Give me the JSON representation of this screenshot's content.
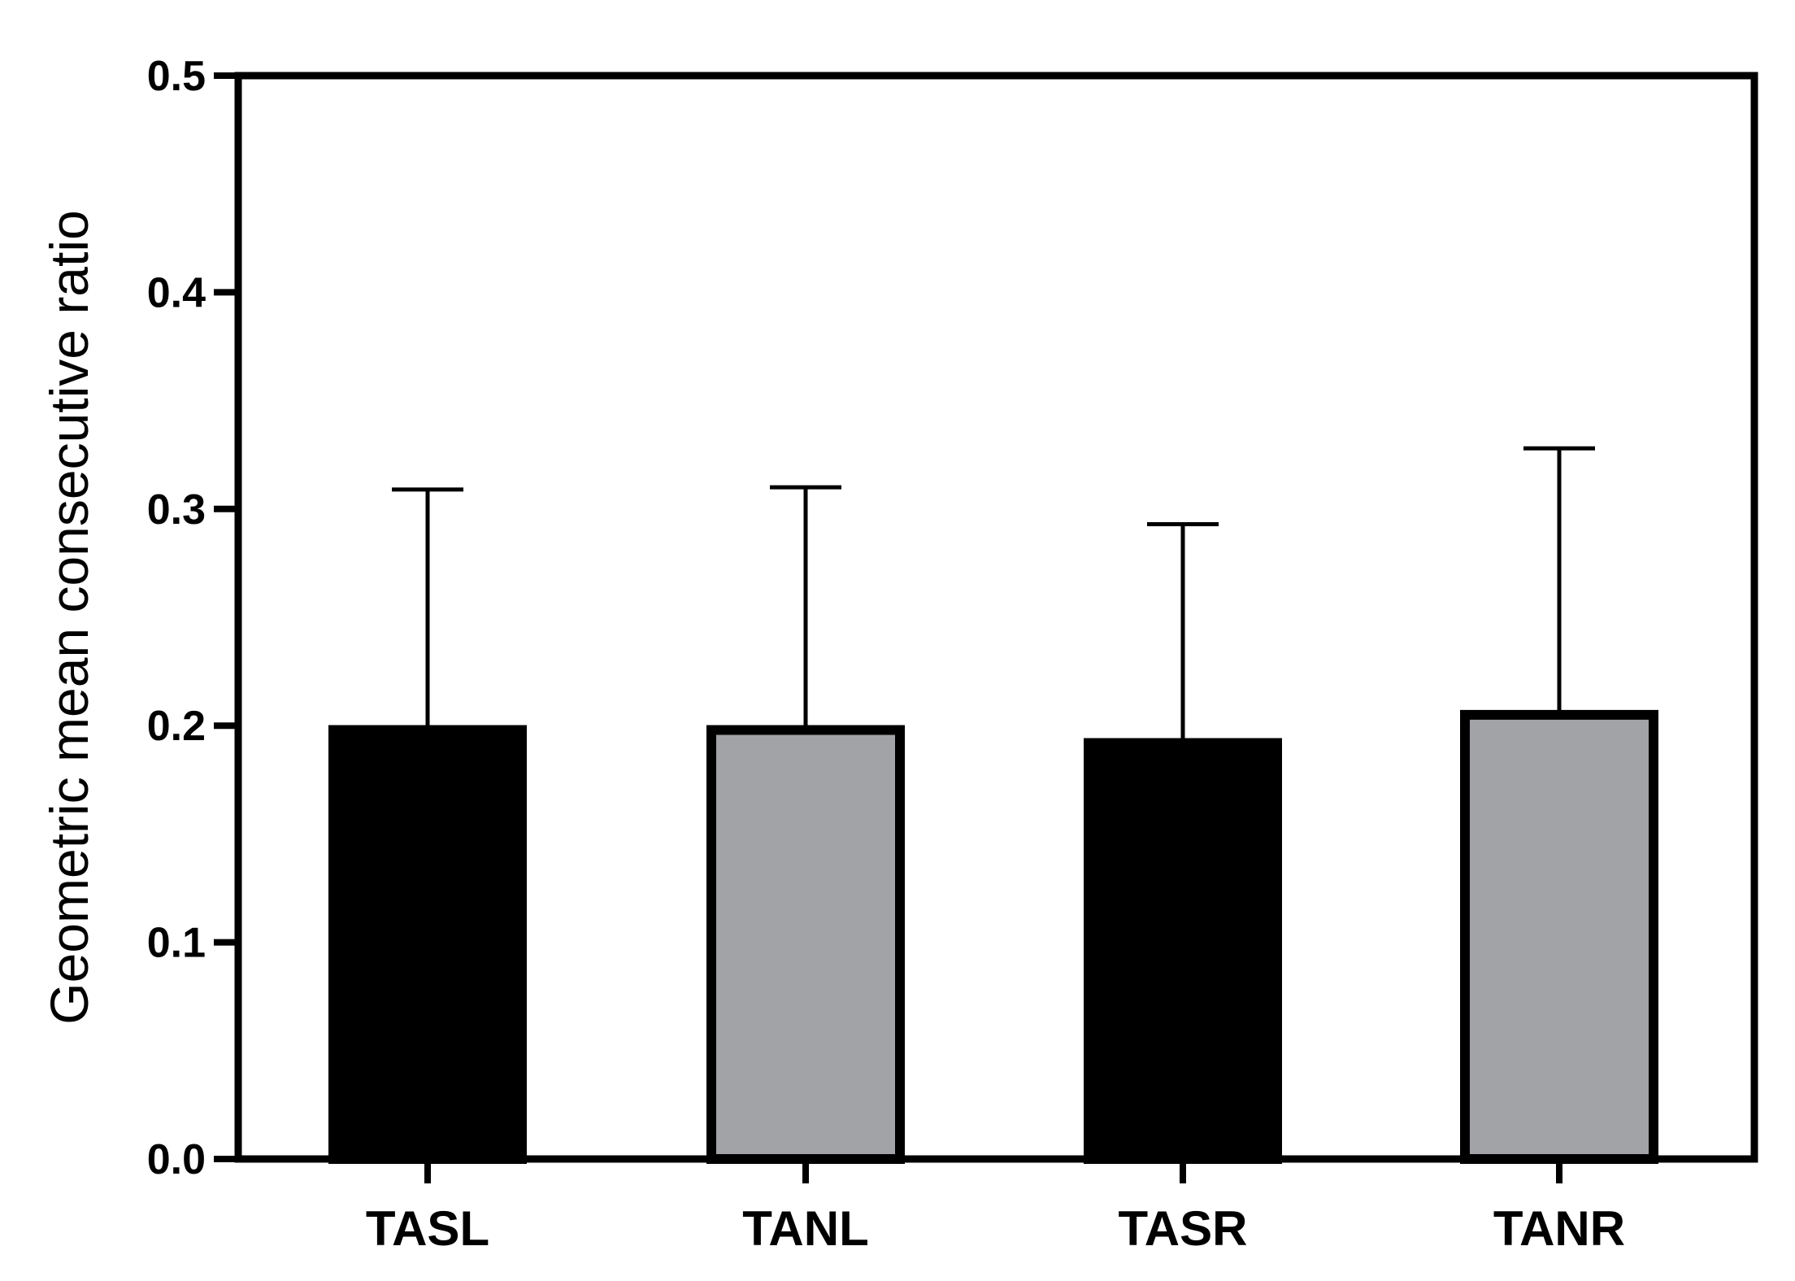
{
  "chart_data": {
    "type": "bar",
    "title": "",
    "xlabel": "",
    "ylabel": "Geometric mean consecutive ratio",
    "ylim": [
      0,
      0.5
    ],
    "yticks": [
      "0.0",
      "0.1",
      "0.2",
      "0.3",
      "0.4",
      "0.5"
    ],
    "categories": [
      "TASL",
      "TANL",
      "TASR",
      "TANR"
    ],
    "values": [
      0.198,
      0.198,
      0.192,
      0.205
    ],
    "error_upper": [
      0.309,
      0.31,
      0.293,
      0.328
    ],
    "fill_colors": [
      "#000000",
      "#a2a3a6",
      "#000000",
      "#a2a3a6"
    ],
    "grid": false,
    "legend": "none"
  }
}
